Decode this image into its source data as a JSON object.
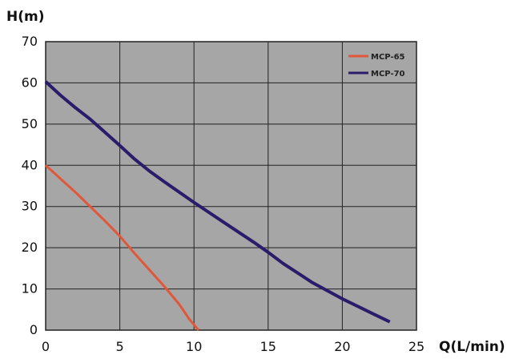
{
  "chart_data": {
    "type": "line",
    "title": "",
    "xlabel": "Q(L/min)",
    "ylabel": "H(m)",
    "xlim": [
      0,
      25
    ],
    "ylim": [
      0,
      70
    ],
    "x_ticks": [
      0,
      5,
      10,
      15,
      20,
      25
    ],
    "y_ticks": [
      0,
      10,
      20,
      30,
      40,
      50,
      60,
      70
    ],
    "x_tick_labels": [
      "0",
      "5",
      "10",
      "15",
      "20",
      "25"
    ],
    "y_tick_labels": [
      "0",
      "10",
      "20",
      "30",
      "40",
      "50",
      "60",
      "70"
    ],
    "grid": true,
    "legend_position": "top-right",
    "plot_background": "#a6a6a6",
    "series": [
      {
        "name": "MCP-65",
        "color": "#e0573a",
        "points": [
          [
            0,
            40
          ],
          [
            2,
            33.5
          ],
          [
            4,
            26.5
          ],
          [
            5,
            22.8
          ],
          [
            6,
            18.6
          ],
          [
            8,
            10.6
          ],
          [
            9,
            6.3
          ],
          [
            9.7,
            2.6
          ],
          [
            10.3,
            0
          ]
        ]
      },
      {
        "name": "MCP-70",
        "color": "#2b1b6b",
        "points": [
          [
            0,
            60.3
          ],
          [
            1,
            57
          ],
          [
            2,
            54
          ],
          [
            3,
            51.2
          ],
          [
            4,
            48
          ],
          [
            5,
            44.8
          ],
          [
            6,
            41.5
          ],
          [
            7,
            38.6
          ],
          [
            8,
            36
          ],
          [
            10,
            31
          ],
          [
            12,
            26.2
          ],
          [
            14,
            21.4
          ],
          [
            15,
            18.9
          ],
          [
            16,
            16.2
          ],
          [
            18,
            11.5
          ],
          [
            20,
            7.6
          ],
          [
            22,
            4.1
          ],
          [
            23.2,
            2
          ]
        ]
      }
    ]
  }
}
